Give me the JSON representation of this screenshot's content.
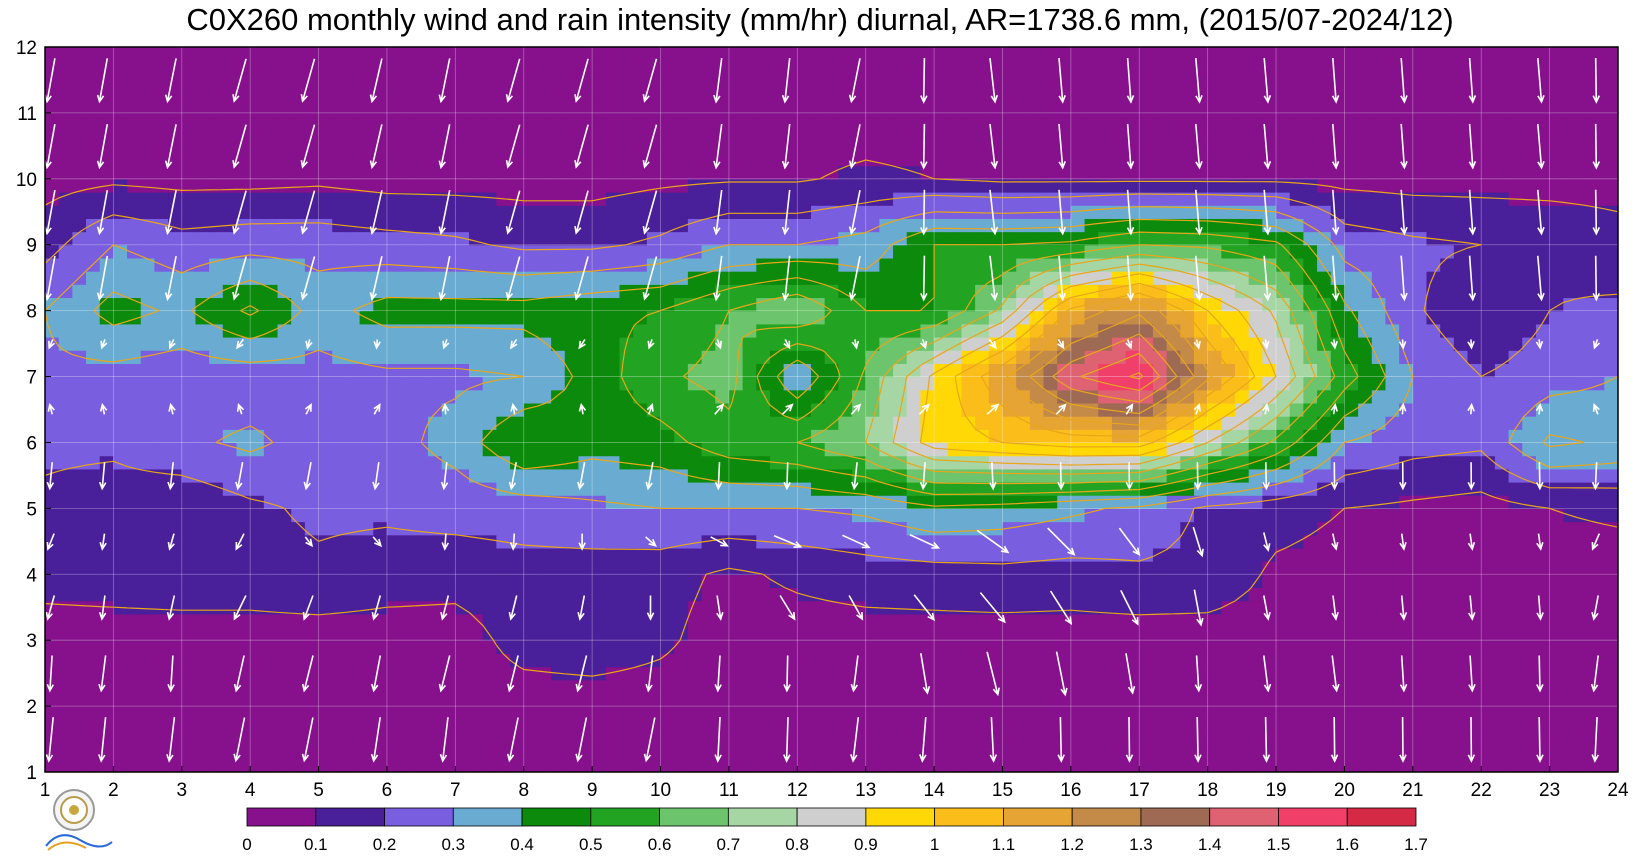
{
  "chart_data": {
    "type": "heatmap",
    "title": "C0X260 monthly wind and rain intensity (mm/hr) diurnal, AR=1738.6 mm, (2015/07-2024/12)",
    "x_ticks": [
      1,
      2,
      3,
      4,
      5,
      6,
      7,
      8,
      9,
      10,
      11,
      12,
      13,
      14,
      15,
      16,
      17,
      18,
      19,
      20,
      21,
      22,
      23,
      24
    ],
    "y_ticks": [
      1,
      2,
      3,
      4,
      5,
      6,
      7,
      8,
      9,
      10,
      11,
      12
    ],
    "xlim": [
      1,
      24
    ],
    "ylim": [
      1,
      12
    ],
    "grid": true,
    "colorbar": {
      "ticks": [
        "0",
        "0.1",
        "0.2",
        "0.3",
        "0.4",
        "0.5",
        "0.6",
        "0.7",
        "0.8",
        "0.9",
        "1",
        "1.1",
        "1.2",
        "1.3",
        "1.4",
        "1.5",
        "1.6",
        "1.7"
      ],
      "colors": [
        "#87108c",
        "#4a1f9a",
        "#7a5ee0",
        "#6aacd1",
        "#0c8a0c",
        "#22a422",
        "#6cc46c",
        "#a6d6a4",
        "#cfcfcf",
        "#ffd806",
        "#fbbd1a",
        "#e6a434",
        "#c48a48",
        "#9e6a54",
        "#df6272",
        "#f0406a",
        "#d42a46"
      ]
    },
    "contour_levels": [
      0.1,
      0.2,
      0.3,
      0.4,
      0.5,
      0.6,
      0.7,
      0.8,
      0.9,
      1.0,
      1.1,
      1.2,
      1.3,
      1.4,
      1.5,
      1.6
    ],
    "rain_rows": [
      {
        "month": 1,
        "values": [
          0.05,
          0.05,
          0.05,
          0.05,
          0.05,
          0.05,
          0.05,
          0.05,
          0.05,
          0.05,
          0.05,
          0.05,
          0.05,
          0.05,
          0.05,
          0.05,
          0.05,
          0.05,
          0.05,
          0.05,
          0.05,
          0.05,
          0.05,
          0.05
        ]
      },
      {
        "month": 2,
        "values": [
          0.05,
          0.05,
          0.05,
          0.05,
          0.05,
          0.05,
          0.05,
          0.05,
          0.05,
          0.05,
          0.05,
          0.05,
          0.05,
          0.05,
          0.05,
          0.05,
          0.05,
          0.05,
          0.05,
          0.05,
          0.05,
          0.05,
          0.05,
          0.05
        ]
      },
      {
        "month": 3,
        "values": [
          0.05,
          0.05,
          0.05,
          0.05,
          0.05,
          0.05,
          0.05,
          0.14,
          0.16,
          0.12,
          0.05,
          0.05,
          0.05,
          0.05,
          0.05,
          0.05,
          0.05,
          0.05,
          0.05,
          0.05,
          0.05,
          0.05,
          0.05,
          0.05
        ]
      },
      {
        "month": 4,
        "values": [
          0.14,
          0.15,
          0.16,
          0.16,
          0.18,
          0.15,
          0.14,
          0.16,
          0.15,
          0.14,
          0.08,
          0.12,
          0.15,
          0.16,
          0.17,
          0.16,
          0.18,
          0.17,
          0.08,
          0.06,
          0.05,
          0.05,
          0.05,
          0.05
        ]
      },
      {
        "month": 5,
        "values": [
          0.18,
          0.15,
          0.12,
          0.18,
          0.22,
          0.22,
          0.24,
          0.25,
          0.28,
          0.3,
          0.3,
          0.3,
          0.32,
          0.38,
          0.36,
          0.32,
          0.28,
          0.18,
          0.14,
          0.1,
          0.08,
          0.06,
          0.1,
          0.12
        ]
      },
      {
        "month": 6,
        "values": [
          0.22,
          0.22,
          0.28,
          0.32,
          0.26,
          0.26,
          0.34,
          0.5,
          0.44,
          0.46,
          0.56,
          0.6,
          0.7,
          0.95,
          1.0,
          1.05,
          1.05,
          0.8,
          0.58,
          0.3,
          0.24,
          0.22,
          0.42,
          0.38
        ]
      },
      {
        "month": 7,
        "values": [
          0.28,
          0.26,
          0.24,
          0.24,
          0.26,
          0.28,
          0.28,
          0.3,
          0.44,
          0.58,
          0.64,
          0.3,
          0.62,
          0.92,
          1.18,
          1.48,
          1.62,
          1.22,
          0.9,
          0.55,
          0.3,
          0.2,
          0.25,
          0.3
        ]
      },
      {
        "month": 8,
        "values": [
          0.3,
          0.44,
          0.38,
          0.52,
          0.36,
          0.44,
          0.44,
          0.44,
          0.48,
          0.5,
          0.6,
          0.7,
          0.5,
          0.5,
          0.72,
          1.12,
          1.28,
          1.0,
          0.78,
          0.42,
          0.22,
          0.1,
          0.2,
          0.22
        ]
      },
      {
        "month": 9,
        "values": [
          0.16,
          0.3,
          0.24,
          0.26,
          0.26,
          0.24,
          0.22,
          0.18,
          0.18,
          0.22,
          0.3,
          0.3,
          0.34,
          0.5,
          0.5,
          0.52,
          0.6,
          0.58,
          0.52,
          0.26,
          0.22,
          0.2,
          0.18,
          0.14
        ]
      },
      {
        "month": 10,
        "values": [
          0.06,
          0.08,
          0.07,
          0.07,
          0.08,
          0.06,
          0.06,
          0.06,
          0.06,
          0.08,
          0.09,
          0.09,
          0.12,
          0.1,
          0.08,
          0.08,
          0.08,
          0.08,
          0.08,
          0.07,
          0.06,
          0.06,
          0.06,
          0.06
        ]
      },
      {
        "month": 11,
        "values": [
          0.05,
          0.05,
          0.05,
          0.05,
          0.05,
          0.05,
          0.05,
          0.05,
          0.05,
          0.05,
          0.05,
          0.05,
          0.05,
          0.05,
          0.05,
          0.05,
          0.05,
          0.05,
          0.05,
          0.05,
          0.05,
          0.05,
          0.05,
          0.05
        ]
      },
      {
        "month": 12,
        "values": [
          0.05,
          0.05,
          0.05,
          0.05,
          0.05,
          0.05,
          0.05,
          0.05,
          0.05,
          0.05,
          0.05,
          0.05,
          0.05,
          0.05,
          0.05,
          0.05,
          0.05,
          0.05,
          0.05,
          0.05,
          0.05,
          0.05,
          0.05,
          0.05
        ]
      }
    ],
    "wind_rows": [
      {
        "month": 1.5,
        "u": [
          -0.1,
          -0.1,
          -0.12,
          -0.2,
          -0.2,
          -0.15,
          -0.12,
          -0.2,
          -0.2,
          -0.2,
          -0.05,
          -0.03,
          -0.12,
          -0.08,
          0.05,
          0.02,
          0.01,
          0.02,
          0.02,
          0.01,
          0.01,
          0.01,
          0.02,
          -0.05
        ],
        "v": [
          -1,
          -1,
          -1,
          -1,
          -1,
          -1,
          -1,
          -1,
          -1,
          -1,
          -1,
          -1,
          -1,
          -1,
          -1,
          -1,
          -1,
          -1,
          -1,
          -1,
          -1,
          -1,
          -1,
          -1
        ]
      },
      {
        "month": 2.5,
        "u": [
          -0.05,
          -0.1,
          -0.05,
          -0.18,
          -0.2,
          -0.15,
          -0.2,
          -0.2,
          -0.2,
          -0.1,
          -0.05,
          -0.02,
          -0.1,
          0.15,
          0.25,
          0.2,
          0.15,
          0.05,
          0.1,
          0.1,
          0.05,
          0.05,
          0.02,
          -0.1
        ],
        "v": [
          -0.8,
          -0.8,
          -0.8,
          -0.8,
          -0.8,
          -0.8,
          -0.8,
          -0.8,
          -0.8,
          -0.8,
          -0.8,
          -0.8,
          -0.8,
          -0.9,
          -1,
          -1,
          -0.9,
          -0.8,
          -0.8,
          -0.8,
          -0.8,
          -0.8,
          -0.8,
          -0.8
        ]
      },
      {
        "month": 4,
        "u": [
          -0.2,
          -0.05,
          -0.15,
          -0.3,
          -0.2,
          -0.15,
          -0.1,
          -0.1,
          -0.05,
          0.05,
          0.15,
          0.5,
          0.5,
          0.6,
          0.7,
          0.6,
          0.5,
          0.2,
          0.1,
          0.05,
          0.05,
          0.05,
          0.05,
          -0.1
        ],
        "v": [
          -0.4,
          -0.4,
          -0.4,
          -0.4,
          -0.4,
          -0.4,
          -0.4,
          -0.4,
          -0.4,
          -0.4,
          -0.4,
          -0.4,
          -0.4,
          -0.4,
          -0.5,
          -0.6,
          -0.7,
          -0.8,
          -0.4,
          -0.4,
          -0.4,
          -0.4,
          -0.4,
          -0.4
        ]
      },
      {
        "month": 5,
        "u": [
          -0.08,
          -0.05,
          -0.05,
          -0.05,
          0.5,
          0.5,
          0.05,
          0.05,
          0.05,
          0.4,
          0.6,
          0.7,
          0.7,
          0.7,
          0.7,
          0.6,
          0.4,
          0.2,
          0.1,
          0.1,
          0.05,
          0.05,
          0.05,
          -0.2
        ],
        "v": [
          -0.3,
          -0.3,
          -0.3,
          -0.3,
          0,
          0,
          -0.3,
          -0.3,
          -0.3,
          0,
          0,
          -0.1,
          -0.15,
          -0.2,
          -0.5,
          -0.6,
          -0.5,
          -0.5,
          -0.4,
          -0.3,
          -0.3,
          -0.3,
          -0.3,
          -0.3
        ]
      }
    ]
  }
}
